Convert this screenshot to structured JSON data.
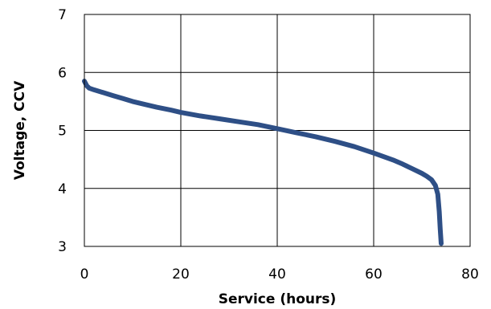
{
  "chart_data": {
    "type": "line",
    "xlabel": "Service (hours)",
    "ylabel": "Voltage, CCV",
    "xlim": [
      0,
      80
    ],
    "ylim": [
      3,
      7
    ],
    "xticks": [
      0,
      20,
      40,
      60,
      80
    ],
    "yticks": [
      3,
      4,
      5,
      6,
      7
    ],
    "grid": true,
    "series": [
      {
        "color": "#2e4f86",
        "x": [
          0,
          0.5,
          1,
          2,
          4,
          6,
          8,
          10,
          12,
          15,
          18,
          20,
          24,
          28,
          32,
          36,
          40,
          44,
          48,
          52,
          56,
          60,
          64,
          66,
          68,
          70,
          71,
          72,
          72.8,
          73.3,
          73.6,
          73.8,
          74
        ],
        "y": [
          5.85,
          5.77,
          5.73,
          5.7,
          5.65,
          5.6,
          5.55,
          5.5,
          5.46,
          5.4,
          5.35,
          5.31,
          5.25,
          5.2,
          5.15,
          5.1,
          5.03,
          4.96,
          4.89,
          4.81,
          4.72,
          4.61,
          4.49,
          4.42,
          4.34,
          4.26,
          4.21,
          4.15,
          4.05,
          3.9,
          3.6,
          3.3,
          3.05
        ]
      }
    ]
  }
}
